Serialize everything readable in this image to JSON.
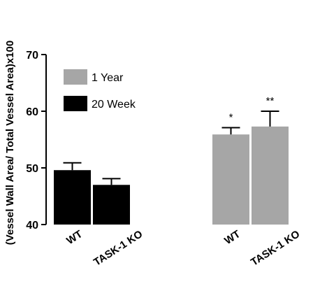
{
  "chart_data": {
    "type": "bar",
    "title": "",
    "xlabel": "",
    "ylabel": "(Vessel Wall Area/ Total Vessel Area)x100",
    "ylim": [
      40,
      70
    ],
    "yticks": [
      40,
      50,
      60,
      70
    ],
    "grid": false,
    "legend": "top-left",
    "colors": {
      "20 Week": "#000000",
      "1 Year": "#a6a6a6"
    },
    "series": [
      {
        "name": "20 Week",
        "categories": [
          "WT",
          "TASK-1 KO"
        ],
        "values": [
          49.6,
          47.0
        ],
        "errors": [
          1.3,
          1.1
        ],
        "annotations": [
          "",
          ""
        ]
      },
      {
        "name": "1 Year",
        "categories": [
          "WT",
          "TASK-1 KO"
        ],
        "values": [
          55.9,
          57.3
        ],
        "errors": [
          1.2,
          2.7
        ],
        "annotations": [
          "*",
          "**"
        ]
      }
    ]
  }
}
